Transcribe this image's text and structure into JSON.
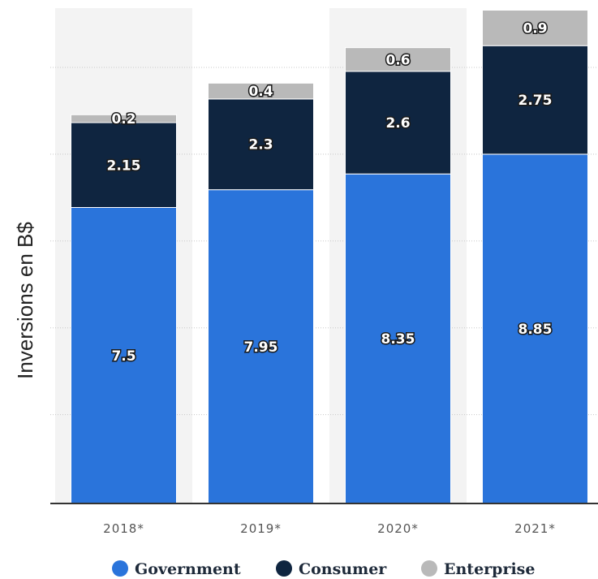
{
  "chart_data": {
    "type": "bar",
    "stacked": true,
    "categories": [
      "2018*",
      "2019*",
      "2020*",
      "2021*"
    ],
    "series": [
      {
        "name": "Government",
        "color": "#2a74db",
        "values": [
          7.5,
          7.95,
          8.35,
          8.85
        ]
      },
      {
        "name": "Consumer",
        "color": "#0f2540",
        "values": [
          2.15,
          2.3,
          2.6,
          2.75
        ]
      },
      {
        "name": "Enterprise",
        "color": "#b9b9b9",
        "values": [
          0.2,
          0.4,
          0.6,
          0.9
        ]
      }
    ],
    "value_labels": {
      "Government": [
        "7.5",
        "7.95",
        "8.35",
        "8.85"
      ],
      "Consumer": [
        "2.15",
        "2.3",
        "2.6",
        "2.75"
      ],
      "Enterprise": [
        "0.2",
        "0.4",
        "0.6",
        "0.9"
      ]
    },
    "title": "",
    "xlabel": "",
    "ylabel": "Inversions en B$",
    "ylim": [
      0,
      12.5
    ],
    "y_tick_labels_shown": false,
    "grid": "horizontal dotted",
    "legend_position": "bottom",
    "alternating_column_shading": true
  }
}
